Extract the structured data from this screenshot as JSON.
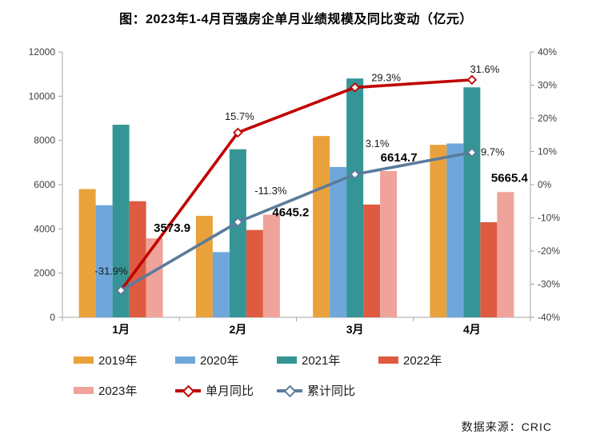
{
  "title": "图：2023年1-4月百强房企单月业绩规模及同比变动（亿元）",
  "source": "数据来源：CRIC",
  "chart_data": {
    "type": "bar",
    "subtype": "grouped-bar with two line series on secondary percent axis",
    "title": "图：2023年1-4月百强房企单月业绩规模及同比变动（亿元）",
    "categories": [
      "1月",
      "2月",
      "3月",
      "4月"
    ],
    "bar_series": [
      {
        "name": "2019年",
        "color": "#E9A23B",
        "values": [
          5800,
          4590,
          8200,
          7800
        ]
      },
      {
        "name": "2020年",
        "color": "#6FA7DB",
        "values": [
          5070,
          2950,
          6800,
          7860
        ]
      },
      {
        "name": "2021年",
        "color": "#359596",
        "values": [
          8710,
          7600,
          10800,
          10400
        ]
      },
      {
        "name": "2022年",
        "color": "#DE5B41",
        "values": [
          5250,
          3950,
          5100,
          4300
        ]
      },
      {
        "name": "2023年",
        "color": "#EFA39A",
        "values": [
          3573.9,
          4645.2,
          6614.7,
          5665.4
        ],
        "value_labels": [
          "3573.9",
          "4645.2",
          "6614.7",
          "5665.4"
        ]
      }
    ],
    "line_series": [
      {
        "name": "单月同比",
        "color": "#C00000",
        "axis": "right",
        "values": [
          -31.9,
          15.7,
          29.3,
          31.6
        ],
        "point_labels": [
          "-31.9%",
          "15.7%",
          "29.3%",
          "31.6%"
        ]
      },
      {
        "name": "累计同比",
        "color": "#5B7B9C",
        "axis": "right",
        "values": [
          -31.9,
          -11.3,
          3.1,
          9.7
        ],
        "point_labels": [
          "",
          "-11.3%",
          "3.1%",
          "9.7%"
        ]
      }
    ],
    "left_axis": {
      "min": 0,
      "max": 12000,
      "step": 2000,
      "tick_labels": [
        "0",
        "2000",
        "4000",
        "6000",
        "8000",
        "10000",
        "12000"
      ]
    },
    "right_axis": {
      "min": -40,
      "max": 40,
      "step": 10,
      "tick_labels": [
        "-40%",
        "-30%",
        "-20%",
        "-10%",
        "0%",
        "10%",
        "20%",
        "30%",
        "40%"
      ]
    },
    "grid": "off",
    "legend_position": "bottom"
  }
}
